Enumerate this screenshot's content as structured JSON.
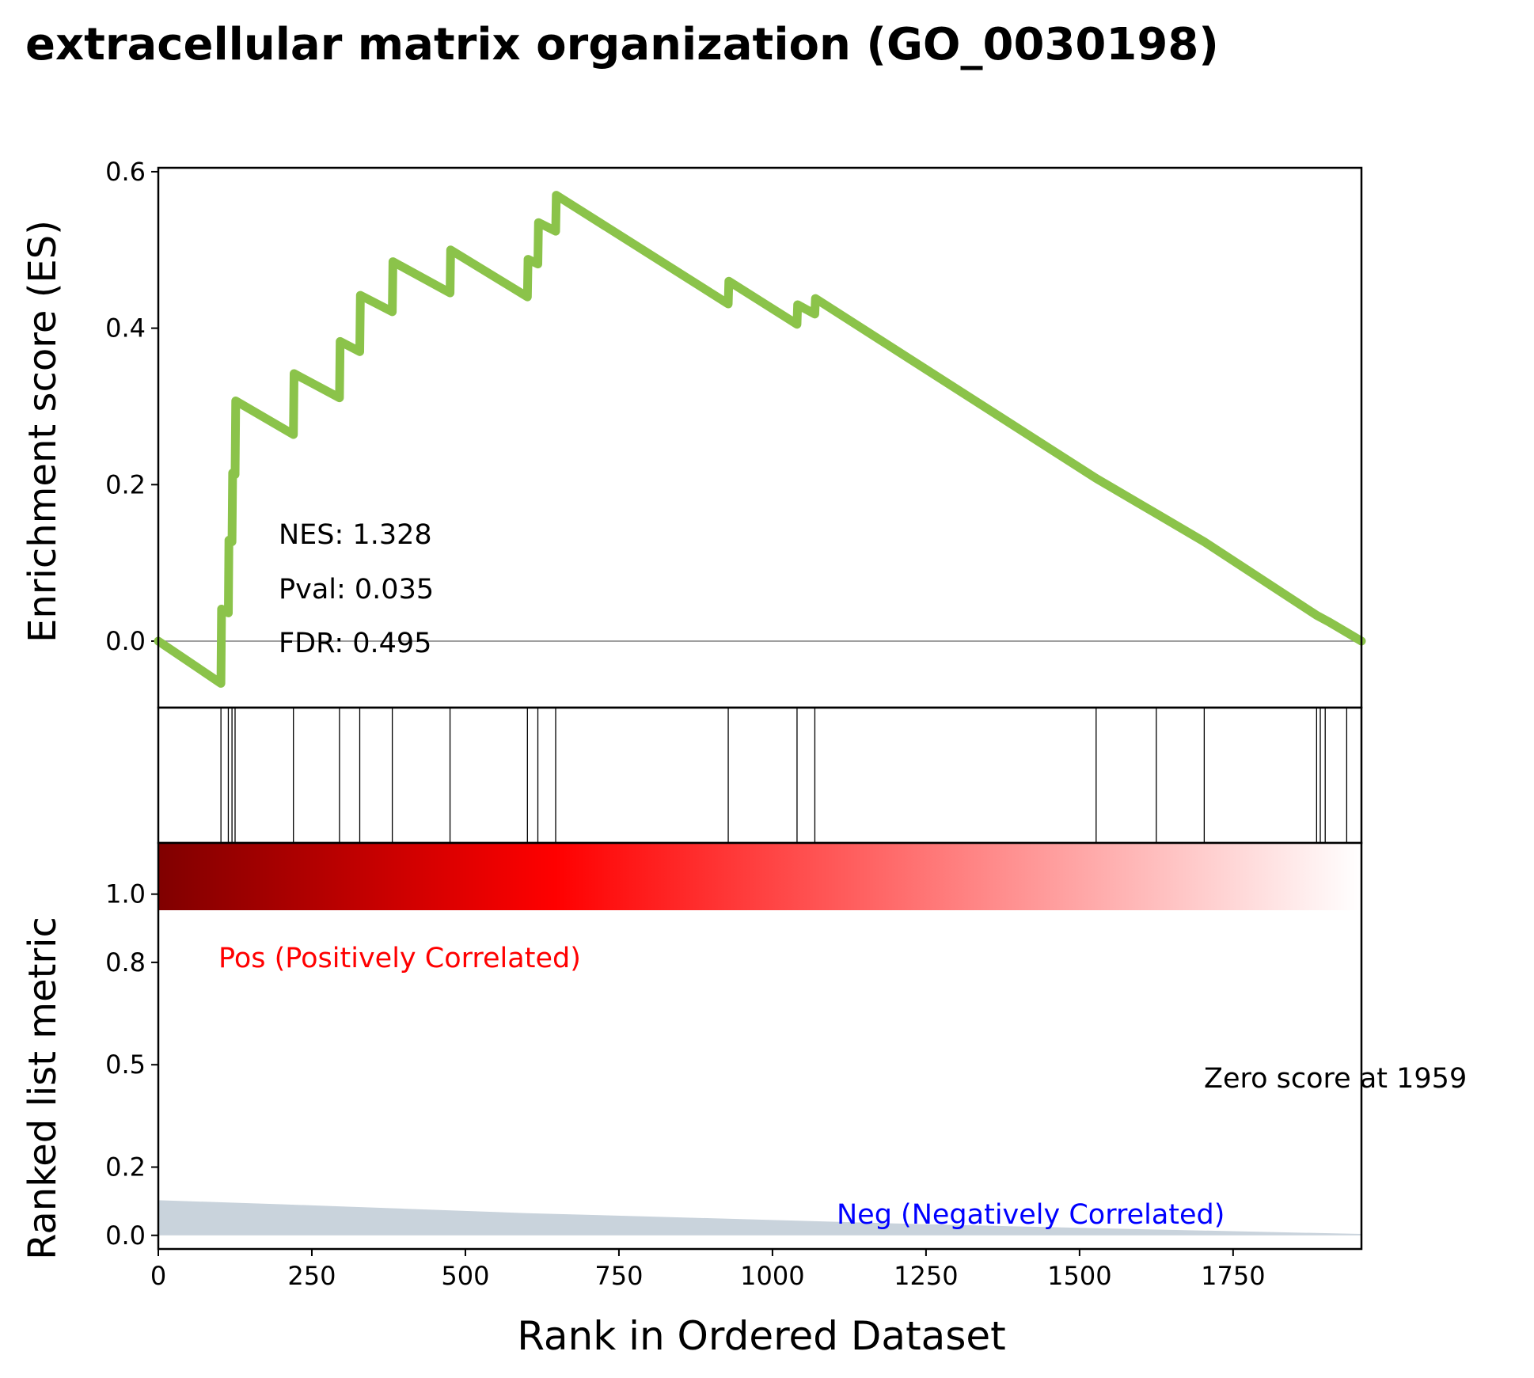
{
  "chart_data": {
    "type": "line",
    "title": "extracellular matrix organization (GO_0030198)",
    "xlabel": "Rank in Ordered Dataset",
    "xlim": [
      0,
      1959
    ],
    "x_ticks": [
      "0",
      "250",
      "500",
      "750",
      "1000",
      "1250",
      "1500",
      "1750"
    ],
    "es_panel": {
      "ylabel": "Enrichment score (ES)",
      "ylim": [
        -0.085,
        0.605
      ],
      "y_ticks": [
        "0.0",
        "0.2",
        "0.4",
        "0.6"
      ],
      "line_color": "#8bc34a",
      "zero_line": true,
      "series": [
        {
          "x": [
            0,
            102,
            103,
            114,
            115,
            120,
            121,
            125,
            126,
            220,
            221,
            295,
            296,
            328,
            329,
            381,
            382,
            475,
            476,
            601,
            602,
            618,
            619,
            647,
            648,
            928,
            929,
            1040,
            1041,
            1069,
            1070,
            1527,
            1625,
            1703,
            1886,
            1905,
            1959
          ],
          "y": [
            0.0,
            -0.054,
            0.041,
            0.036,
            0.129,
            0.127,
            0.215,
            0.213,
            0.307,
            0.264,
            0.342,
            0.311,
            0.383,
            0.37,
            0.442,
            0.421,
            0.485,
            0.445,
            0.5,
            0.44,
            0.488,
            0.482,
            0.535,
            0.524,
            0.57,
            0.431,
            0.46,
            0.405,
            0.43,
            0.418,
            0.438,
            0.208,
            0.163,
            0.127,
            0.033,
            0.025,
            0.0
          ]
        }
      ],
      "annotations": {
        "nes": "NES: 1.328",
        "pval": "Pval: 0.035",
        "fdr": "FDR: 0.495"
      }
    },
    "hits_panel": {
      "positions": [
        102,
        114,
        120,
        125,
        220,
        295,
        328,
        381,
        475,
        601,
        618,
        647,
        928,
        1040,
        1069,
        1527,
        1625,
        1703,
        1886,
        1892,
        1900,
        1935
      ]
    },
    "heatmap": {
      "colormap": "seismic_r (dark red to white)",
      "colors": [
        "#800000",
        "#ff0000",
        "#ffffff"
      ],
      "range": [
        0,
        1959
      ]
    },
    "rank_panel": {
      "ylabel": "Ranked list metric",
      "ylim": [
        -0.04,
        1.15
      ],
      "y_ticks": [
        "0.0",
        "0.2",
        "0.5",
        "0.8",
        "1.0"
      ],
      "fill_color": "#c9d3dc",
      "area": {
        "x": [
          0,
          200,
          400,
          600,
          800,
          1000,
          1200,
          1400,
          1600,
          1800,
          1959
        ],
        "y": [
          0.103,
          0.091,
          0.078,
          0.065,
          0.055,
          0.045,
          0.035,
          0.026,
          0.018,
          0.01,
          0.004
        ]
      },
      "pos_label": "Pos (Positively Correlated)",
      "neg_label": "Neg (Negatively Correlated)",
      "zero_score_label": "Zero score at 1959"
    }
  }
}
